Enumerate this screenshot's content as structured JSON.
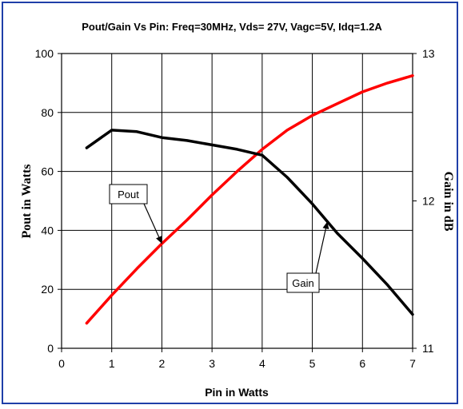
{
  "chart_data": {
    "type": "line",
    "title": "Pout/Gain Vs Pin: Freq=30MHz, Vds= 27V, Vagc=5V, Idq=1.2A",
    "xlabel": "Pin in Watts",
    "ylabel": "Pout  in Watts",
    "y2label": "Gain in dB",
    "xlim": [
      0,
      7
    ],
    "ylim": [
      0,
      100
    ],
    "y2lim": [
      11,
      13
    ],
    "xticks": [
      "0",
      "1",
      "2",
      "3",
      "4",
      "5",
      "6",
      "7"
    ],
    "yticks": [
      "0",
      "20",
      "40",
      "60",
      "80",
      "100"
    ],
    "y2ticks": [
      "11",
      "12",
      "13"
    ],
    "grid": true,
    "series": [
      {
        "name": "Pout",
        "axis": "left",
        "color": "#ff0000",
        "x": [
          0.5,
          1,
          1.5,
          2,
          2.5,
          3,
          3.5,
          4,
          4.5,
          5,
          5.5,
          6,
          6.5,
          7
        ],
        "y": [
          8.5,
          18,
          27,
          35.5,
          43.5,
          52,
          60,
          67.5,
          74,
          79,
          83,
          87,
          90,
          92.5
        ]
      },
      {
        "name": "Gain",
        "axis": "right",
        "color": "#000000",
        "x": [
          0.5,
          1,
          1.5,
          2,
          2.5,
          3,
          3.5,
          4,
          4.5,
          5,
          5.5,
          6,
          6.5,
          7
        ],
        "y": [
          12.36,
          12.48,
          12.47,
          12.43,
          12.41,
          12.38,
          12.35,
          12.31,
          12.16,
          11.98,
          11.78,
          11.61,
          11.43,
          11.23
        ]
      }
    ],
    "annotations": [
      {
        "text": "Pout",
        "series": "Pout"
      },
      {
        "text": "Gain",
        "series": "Gain"
      }
    ]
  }
}
